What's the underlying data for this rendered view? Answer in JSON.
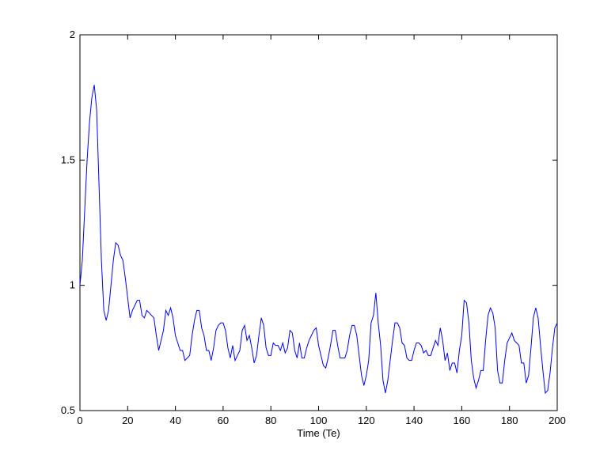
{
  "chart_data": {
    "type": "line",
    "x_label": "Time (Te)",
    "color": "#0000ff",
    "xlim": [
      0,
      200
    ],
    "ylim": [
      0.5,
      2
    ],
    "xticks": [
      0,
      20,
      40,
      60,
      80,
      100,
      120,
      140,
      160,
      180,
      200
    ],
    "yticks": [
      0.5,
      1,
      1.5,
      2
    ],
    "grid": false,
    "x": [
      0,
      1,
      2,
      3,
      4,
      5,
      6,
      7,
      8,
      9,
      10,
      11,
      12,
      13,
      14,
      15,
      16,
      17,
      18,
      19,
      20,
      21,
      22,
      23,
      24,
      25,
      26,
      27,
      28,
      29,
      30,
      31,
      32,
      33,
      34,
      35,
      36,
      37,
      38,
      39,
      40,
      41,
      42,
      43,
      44,
      45,
      46,
      47,
      48,
      49,
      50,
      51,
      52,
      53,
      54,
      55,
      56,
      57,
      58,
      59,
      60,
      61,
      62,
      63,
      64,
      65,
      66,
      67,
      68,
      69,
      70,
      71,
      72,
      73,
      74,
      75,
      76,
      77,
      78,
      79,
      80,
      81,
      82,
      83,
      84,
      85,
      86,
      87,
      88,
      89,
      90,
      91,
      92,
      93,
      94,
      95,
      96,
      97,
      98,
      99,
      100,
      101,
      102,
      103,
      104,
      105,
      106,
      107,
      108,
      109,
      110,
      111,
      112,
      113,
      114,
      115,
      116,
      117,
      118,
      119,
      120,
      121,
      122,
      123,
      124,
      125,
      126,
      127,
      128,
      129,
      130,
      131,
      132,
      133,
      134,
      135,
      136,
      137,
      138,
      139,
      140,
      141,
      142,
      143,
      144,
      145,
      146,
      147,
      148,
      149,
      150,
      151,
      152,
      153,
      154,
      155,
      156,
      157,
      158,
      159,
      160,
      161,
      162,
      163,
      164,
      165,
      166,
      167,
      168,
      169,
      170,
      171,
      172,
      173,
      174,
      175,
      176,
      177,
      178,
      179,
      180,
      181,
      182,
      183,
      184,
      185,
      186,
      187,
      188,
      189,
      190,
      191,
      192,
      193,
      194,
      195,
      196,
      197,
      198,
      199,
      200
    ],
    "values": [
      1.0,
      1.1,
      1.3,
      1.5,
      1.65,
      1.75,
      1.8,
      1.7,
      1.4,
      1.1,
      0.9,
      0.86,
      0.9,
      1.0,
      1.1,
      1.17,
      1.16,
      1.12,
      1.1,
      1.03,
      0.95,
      0.87,
      0.9,
      0.92,
      0.94,
      0.94,
      0.88,
      0.87,
      0.9,
      0.89,
      0.88,
      0.87,
      0.8,
      0.74,
      0.78,
      0.82,
      0.9,
      0.88,
      0.91,
      0.87,
      0.8,
      0.77,
      0.74,
      0.74,
      0.7,
      0.71,
      0.72,
      0.8,
      0.86,
      0.9,
      0.9,
      0.83,
      0.8,
      0.74,
      0.74,
      0.7,
      0.75,
      0.82,
      0.84,
      0.85,
      0.85,
      0.82,
      0.75,
      0.71,
      0.76,
      0.7,
      0.72,
      0.74,
      0.82,
      0.84,
      0.78,
      0.8,
      0.75,
      0.69,
      0.72,
      0.8,
      0.87,
      0.84,
      0.75,
      0.72,
      0.72,
      0.77,
      0.76,
      0.76,
      0.74,
      0.77,
      0.73,
      0.75,
      0.82,
      0.81,
      0.74,
      0.71,
      0.77,
      0.71,
      0.71,
      0.75,
      0.78,
      0.8,
      0.82,
      0.83,
      0.76,
      0.72,
      0.68,
      0.67,
      0.71,
      0.76,
      0.82,
      0.82,
      0.76,
      0.71,
      0.71,
      0.71,
      0.74,
      0.8,
      0.84,
      0.84,
      0.8,
      0.72,
      0.64,
      0.6,
      0.64,
      0.7,
      0.85,
      0.88,
      0.97,
      0.85,
      0.76,
      0.62,
      0.57,
      0.62,
      0.7,
      0.78,
      0.85,
      0.85,
      0.83,
      0.77,
      0.76,
      0.71,
      0.7,
      0.7,
      0.74,
      0.77,
      0.77,
      0.76,
      0.73,
      0.74,
      0.72,
      0.72,
      0.75,
      0.78,
      0.76,
      0.83,
      0.78,
      0.7,
      0.73,
      0.66,
      0.69,
      0.69,
      0.65,
      0.74,
      0.8,
      0.94,
      0.93,
      0.85,
      0.7,
      0.63,
      0.59,
      0.62,
      0.66,
      0.66,
      0.78,
      0.88,
      0.91,
      0.89,
      0.83,
      0.66,
      0.61,
      0.61,
      0.7,
      0.77,
      0.79,
      0.81,
      0.78,
      0.77,
      0.76,
      0.69,
      0.69,
      0.61,
      0.64,
      0.75,
      0.87,
      0.91,
      0.87,
      0.76,
      0.66,
      0.57,
      0.58,
      0.65,
      0.75,
      0.83,
      0.85
    ]
  }
}
